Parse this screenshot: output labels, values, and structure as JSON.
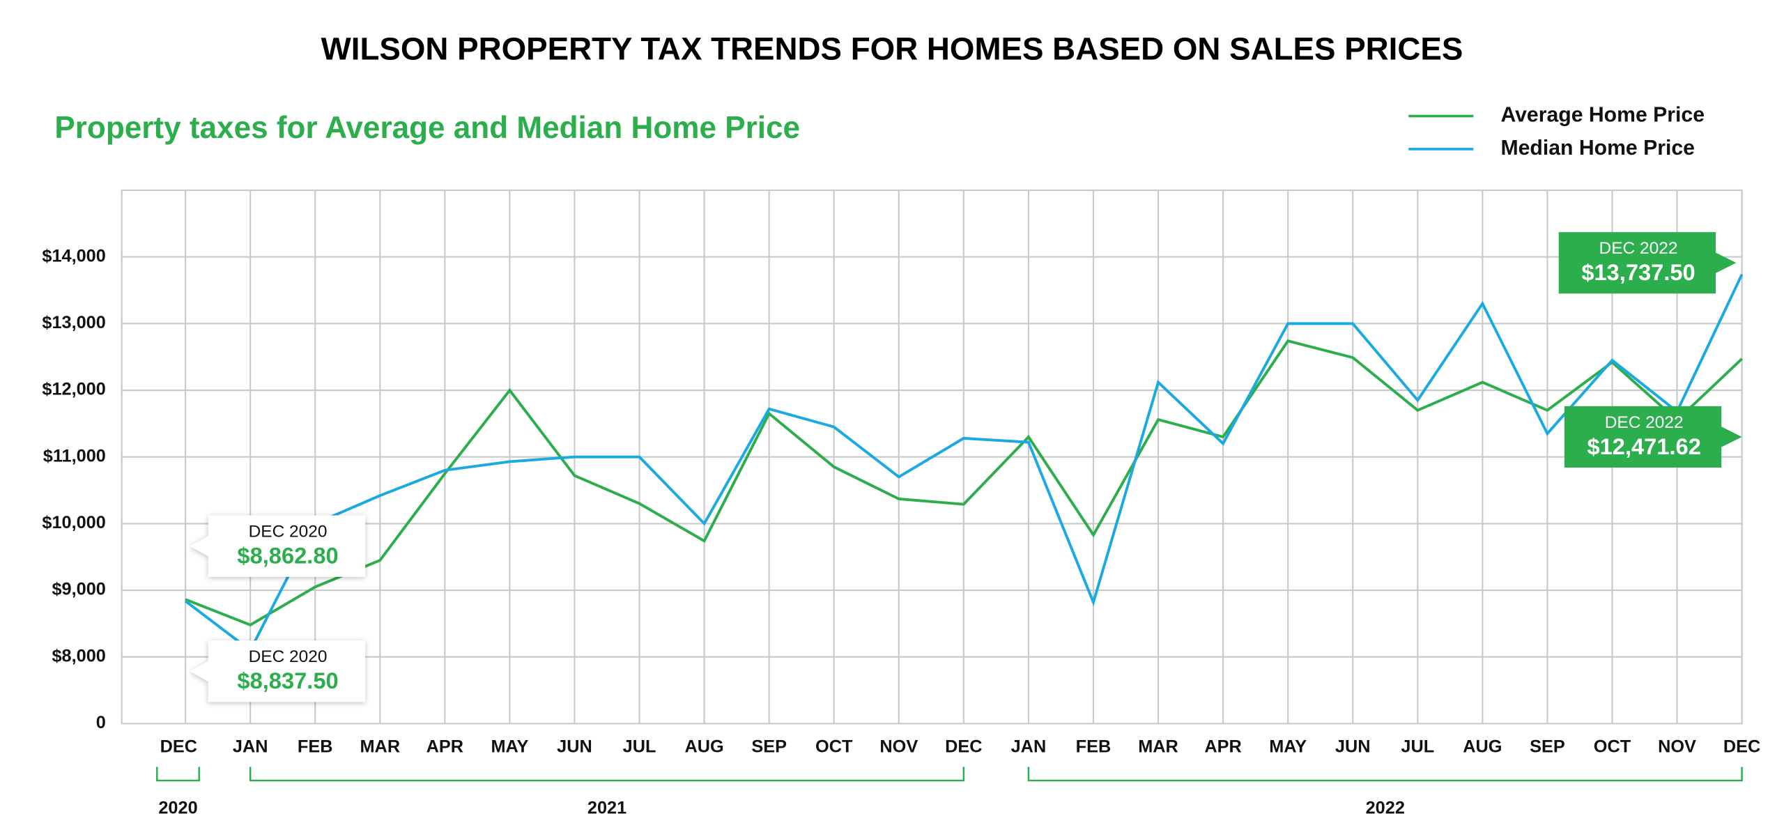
{
  "chart_data": {
    "type": "line",
    "title": "WILSON PROPERTY TAX TRENDS FOR HOMES BASED ON SALES PRICES",
    "subtitle": "Property taxes for Average and Median Home Price",
    "categories": [
      "DEC",
      "JAN",
      "FEB",
      "MAR",
      "APR",
      "MAY",
      "JUN",
      "JUL",
      "AUG",
      "SEP",
      "OCT",
      "NOV",
      "DEC",
      "JAN",
      "FEB",
      "MAR",
      "APR",
      "MAY",
      "JUN",
      "JUL",
      "AUG",
      "SEP",
      "OCT",
      "NOV",
      "DEC"
    ],
    "x_groups": [
      "2020",
      "2021",
      "2022"
    ],
    "series": [
      {
        "name": "Average Home Price",
        "color": "#2bae4b",
        "values": [
          8862.8,
          8480,
          9050,
          9450,
          10750,
          12000,
          10720,
          10300,
          9740,
          11650,
          10850,
          10370,
          10290,
          11300,
          9830,
          11560,
          11300,
          12740,
          12490,
          11700,
          12120,
          11700,
          12420,
          11550,
          12471.62
        ],
        "value_labels": [
          "$8,862.80",
          null,
          null,
          null,
          null,
          null,
          null,
          null,
          null,
          null,
          null,
          null,
          null,
          null,
          null,
          null,
          null,
          null,
          null,
          null,
          null,
          null,
          null,
          null,
          "$12,471.62"
        ],
        "label_titles": [
          "DEC 2020",
          null,
          null,
          null,
          null,
          null,
          null,
          null,
          null,
          null,
          null,
          null,
          null,
          null,
          null,
          null,
          null,
          null,
          null,
          null,
          null,
          null,
          null,
          null,
          "DEC 2022"
        ]
      },
      {
        "name": "Median Home Price",
        "color": "#1ba9e1",
        "values": [
          8837.5,
          8100,
          10000,
          10420,
          10800,
          10930,
          11000,
          11000,
          10000,
          11720,
          11450,
          10700,
          11280,
          11220,
          8820,
          12120,
          11200,
          13000,
          13000,
          11850,
          13300,
          11350,
          12450,
          11680,
          13737.5
        ],
        "value_labels": [
          "$8,837.50",
          null,
          null,
          null,
          null,
          null,
          null,
          null,
          null,
          null,
          null,
          null,
          null,
          null,
          null,
          null,
          null,
          null,
          null,
          null,
          null,
          null,
          null,
          null,
          "$13,737.50"
        ],
        "label_titles": [
          "DEC 2020",
          null,
          null,
          null,
          null,
          null,
          null,
          null,
          null,
          null,
          null,
          null,
          null,
          null,
          null,
          null,
          null,
          null,
          null,
          null,
          null,
          null,
          null,
          null,
          "DEC 2022"
        ]
      }
    ],
    "ylim": [
      7000,
      15000
    ],
    "yticks": [
      {
        "value": 8000,
        "label": "$8,000"
      },
      {
        "value": 9000,
        "label": "$9,000"
      },
      {
        "value": 10000,
        "label": "$10,000"
      },
      {
        "value": 11000,
        "label": "$11,000"
      },
      {
        "value": 12000,
        "label": "$12,000"
      },
      {
        "value": 13000,
        "label": "$13,000"
      },
      {
        "value": 14000,
        "label": "$14,000"
      }
    ],
    "ybreak_label": "0",
    "grid": true,
    "legend": "top-right"
  }
}
